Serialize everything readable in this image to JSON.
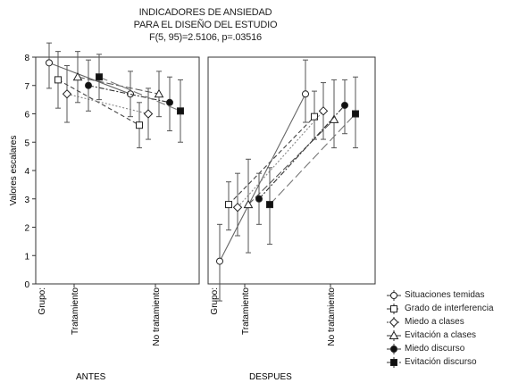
{
  "chart_data": {
    "type": "line",
    "title_lines": [
      "INDICADORES DE ANSIEDAD",
      "PARA EL DISEÑO DEL ESTUDIO",
      "F(5, 95)=2.5106, p=.03516"
    ],
    "ylabel": "Valores escalares",
    "ylim": [
      0,
      8
    ],
    "y_ticks": [
      "0",
      "1",
      "2",
      "3",
      "4",
      "5",
      "6",
      "7",
      "8"
    ],
    "group_axis_label": "Grupo:",
    "categories": [
      "Tratamiento",
      "No tratamiento"
    ],
    "panels": [
      "ANTES",
      "DESPUES"
    ],
    "series": [
      {
        "name": "Situaciones temidas",
        "marker": "circle-open",
        "dash": "",
        "antes": {
          "mean": [
            7.8,
            6.7
          ],
          "lo": [
            6.9,
            5.9
          ],
          "hi": [
            8.5,
            7.5
          ]
        },
        "despues": {
          "mean": [
            0.8,
            6.7
          ],
          "lo": [
            -0.6,
            5.7
          ],
          "hi": [
            2.1,
            7.9
          ]
        }
      },
      {
        "name": "Grado de interferencia",
        "marker": "square-open",
        "dash": "5,3",
        "antes": {
          "mean": [
            7.2,
            5.6
          ],
          "lo": [
            6.2,
            4.8
          ],
          "hi": [
            8.2,
            6.4
          ]
        },
        "despues": {
          "mean": [
            2.8,
            5.9
          ],
          "lo": [
            1.9,
            5.1
          ],
          "hi": [
            3.6,
            6.8
          ]
        }
      },
      {
        "name": "Miedo a clases",
        "marker": "diamond-open",
        "dash": "2,2",
        "antes": {
          "mean": [
            6.7,
            6.0
          ],
          "lo": [
            5.7,
            5.1
          ],
          "hi": [
            7.7,
            6.9
          ]
        },
        "despues": {
          "mean": [
            2.7,
            6.1
          ],
          "lo": [
            1.7,
            5.1
          ],
          "hi": [
            3.9,
            7.1
          ]
        }
      },
      {
        "name": "Evitación a clases",
        "marker": "triangle-open",
        "dash": "8,3",
        "antes": {
          "mean": [
            7.3,
            6.7
          ],
          "lo": [
            6.4,
            5.9
          ],
          "hi": [
            8.2,
            7.5
          ]
        },
        "despues": {
          "mean": [
            2.8,
            5.8
          ],
          "lo": [
            1.1,
            4.8
          ],
          "hi": [
            4.4,
            7.2
          ]
        }
      },
      {
        "name": "Miedo discurso",
        "marker": "circle-filled",
        "dash": "6,2,2,2",
        "antes": {
          "mean": [
            7.0,
            6.4
          ],
          "lo": [
            6.1,
            5.4
          ],
          "hi": [
            7.9,
            7.3
          ]
        },
        "despues": {
          "mean": [
            3.0,
            6.3
          ],
          "lo": [
            2.1,
            5.3
          ],
          "hi": [
            3.9,
            7.2
          ]
        }
      },
      {
        "name": "Evitación discurso",
        "marker": "square-filled",
        "dash": "10,4",
        "antes": {
          "mean": [
            7.3,
            6.1
          ],
          "lo": [
            6.5,
            5.0
          ],
          "hi": [
            8.1,
            7.2
          ]
        },
        "despues": {
          "mean": [
            2.8,
            6.0
          ],
          "lo": [
            1.4,
            4.8
          ],
          "hi": [
            4.1,
            7.3
          ]
        }
      }
    ],
    "legend_position": "bottom-right",
    "grid": false
  }
}
